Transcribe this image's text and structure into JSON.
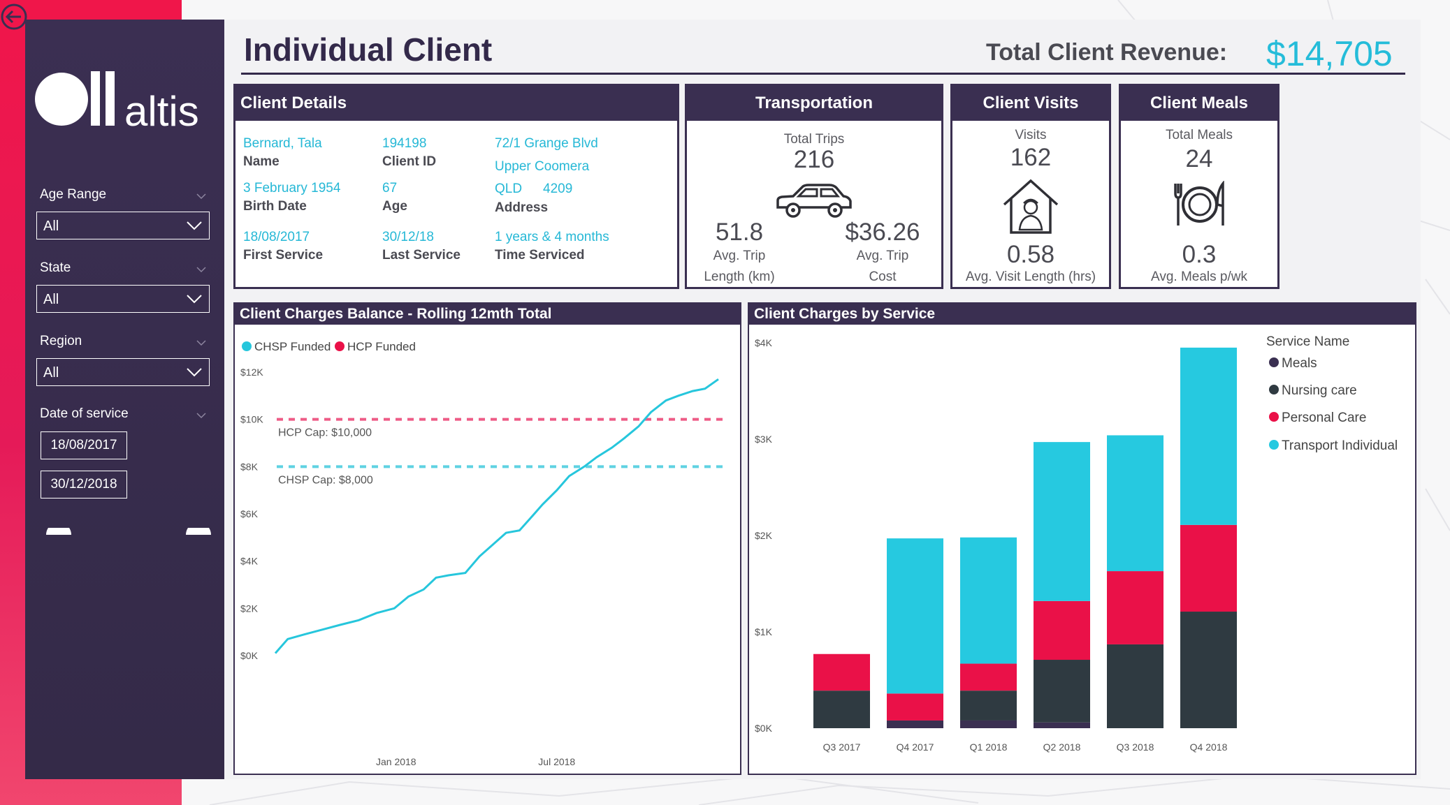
{
  "header": {
    "title": "Individual Client",
    "revenue_label": "Total Client Revenue:",
    "revenue_value": "$14,705"
  },
  "logo": {
    "text": "altis"
  },
  "filters": {
    "age_range": {
      "label": "Age Range",
      "value": "All"
    },
    "state": {
      "label": "State",
      "value": "All"
    },
    "region": {
      "label": "Region",
      "value": "All"
    },
    "date_of_service": {
      "label": "Date of service",
      "from": "18/08/2017",
      "to": "30/12/2018"
    }
  },
  "client_details": {
    "title": "Client Details",
    "name": {
      "value": "Bernard, Tala",
      "label": "Name"
    },
    "client_id": {
      "value": "194198",
      "label": "Client ID"
    },
    "address": {
      "line1": "72/1 Grange Blvd",
      "line2": "Upper Coomera",
      "state": "QLD",
      "postcode": "4209",
      "label": "Address"
    },
    "birth_date": {
      "value": "3 February 1954",
      "label": "Birth Date"
    },
    "age": {
      "value": "67",
      "label": "Age"
    },
    "first_service": {
      "value": "18/08/2017",
      "label": "First Service"
    },
    "last_service": {
      "value": "30/12/18",
      "label": "Last Service"
    },
    "time_serviced": {
      "value": "1 years & 4 months",
      "label": "Time Serviced"
    }
  },
  "transportation": {
    "title": "Transportation",
    "trips_label": "Total Trips",
    "trips_value": "216",
    "avg_length_value": "51.8",
    "avg_length_label1": "Avg. Trip",
    "avg_length_label2": "Length (km)",
    "avg_cost_value": "$36.26",
    "avg_cost_label1": "Avg. Trip",
    "avg_cost_label2": "Cost",
    "icon": "car-icon"
  },
  "visits": {
    "title": "Client Visits",
    "visits_label": "Visits",
    "visits_value": "162",
    "avg_value": "0.58",
    "avg_label": "Avg. Visit Length (hrs)",
    "icon": "house-nurse-icon"
  },
  "meals": {
    "title": "Client Meals",
    "meals_label": "Total Meals",
    "meals_value": "24",
    "avg_value": "0.3",
    "avg_label": "Avg. Meals p/wk",
    "icon": "plate-cutlery-icon"
  },
  "charges_balance": {
    "title": "Client Charges Balance - Rolling 12mth Total",
    "legend": [
      {
        "name": "CHSP Funded",
        "color": "#26c6dc"
      },
      {
        "name": "HCP Funded",
        "color": "#ea1148"
      }
    ],
    "hcp_cap_label": "HCP Cap: $10,000",
    "chsp_cap_label": "CHSP Cap: $8,000"
  },
  "charges_by_service": {
    "title": "Client Charges by Service",
    "legend_title": "Service Name",
    "legend": [
      {
        "name": "Meals",
        "color": "#3a2f51"
      },
      {
        "name": "Nursing care",
        "color": "#2f3a41"
      },
      {
        "name": "Personal Care",
        "color": "#ea1148"
      },
      {
        "name": "Transport Individual",
        "color": "#26c9e0"
      }
    ]
  },
  "chart_data": [
    {
      "type": "line",
      "title": "Client Charges Balance - Rolling 12mth Total",
      "x_ticks": [
        "Jan 2018",
        "Jul 2018"
      ],
      "y_ticks": [
        "$0K",
        "$2K",
        "$4K",
        "$6K",
        "$8K",
        "$10K",
        "$12K"
      ],
      "ylim": [
        0,
        12000
      ],
      "xlim": [
        "2017-08-18",
        "2018-12-30"
      ],
      "series": [
        {
          "name": "CHSP Funded",
          "color": "#26c6dc",
          "x": [
            "2017-08-18",
            "2017-09-01",
            "2017-09-20",
            "2017-10-10",
            "2017-10-30",
            "2017-11-20",
            "2017-12-10",
            "2017-12-30",
            "2018-01-15",
            "2018-02-01",
            "2018-02-15",
            "2018-03-01",
            "2018-03-20",
            "2018-04-05",
            "2018-04-20",
            "2018-05-05",
            "2018-05-20",
            "2018-06-01",
            "2018-06-15",
            "2018-07-01",
            "2018-07-15",
            "2018-08-01",
            "2018-08-15",
            "2018-09-01",
            "2018-09-15",
            "2018-10-01",
            "2018-10-15",
            "2018-11-01",
            "2018-11-15",
            "2018-12-01",
            "2018-12-15",
            "2018-12-30"
          ],
          "values": [
            100,
            700,
            900,
            1100,
            1300,
            1500,
            1800,
            2000,
            2500,
            2800,
            3300,
            3400,
            3500,
            4200,
            4700,
            5200,
            5300,
            5800,
            6400,
            7000,
            7600,
            8000,
            8400,
            8800,
            9200,
            9700,
            10300,
            10800,
            11000,
            11200,
            11300,
            11700
          ]
        }
      ],
      "reference_lines": [
        {
          "label": "HCP Cap: $10,000",
          "value": 10000,
          "color": "#ee5b86"
        },
        {
          "label": "CHSP Cap: $8,000",
          "value": 8000,
          "color": "#5fd2e2"
        }
      ]
    },
    {
      "type": "bar",
      "stacked": true,
      "title": "Client Charges by Service",
      "categories": [
        "Q3 2017",
        "Q4 2017",
        "Q1 2018",
        "Q2 2018",
        "Q3 2018",
        "Q4 2018"
      ],
      "y_ticks": [
        "$0K",
        "$1K",
        "$2K",
        "$3K",
        "$4K"
      ],
      "ylim": [
        0,
        4000
      ],
      "series": [
        {
          "name": "Meals",
          "color": "#3a2f51",
          "values": [
            0,
            80,
            80,
            60,
            0,
            0
          ]
        },
        {
          "name": "Nursing care",
          "color": "#2f3a41",
          "values": [
            390,
            0,
            310,
            650,
            870,
            1210
          ]
        },
        {
          "name": "Personal Care",
          "color": "#ea1148",
          "values": [
            380,
            280,
            280,
            610,
            760,
            900
          ]
        },
        {
          "name": "Transport Individual",
          "color": "#26c9e0",
          "values": [
            0,
            1610,
            1310,
            1650,
            1410,
            1840
          ]
        }
      ],
      "legend_position": "right"
    }
  ]
}
